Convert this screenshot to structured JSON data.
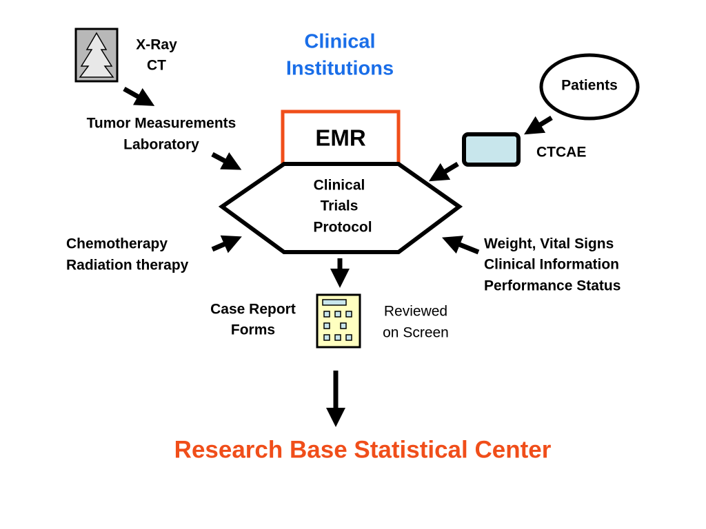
{
  "title": [
    "Clinical",
    "Institutions"
  ],
  "imaging": [
    "X-Ray",
    "CT"
  ],
  "tumor": [
    "Tumor Measurements",
    "Laboratory"
  ],
  "emr": "EMR",
  "protocol": [
    "Clinical",
    "Trials",
    "Protocol"
  ],
  "patients": "Patients",
  "ctcae": "CTCAE",
  "treatment": [
    "Chemotherapy",
    "Radiation therapy"
  ],
  "clinical_info": [
    "Weight, Vital Signs",
    "Clinical Information",
    "Performance Status"
  ],
  "crf": [
    "Case Report",
    "Forms"
  ],
  "review": [
    "Reviewed",
    "on Screen"
  ],
  "destination": "Research Base Statistical Center"
}
